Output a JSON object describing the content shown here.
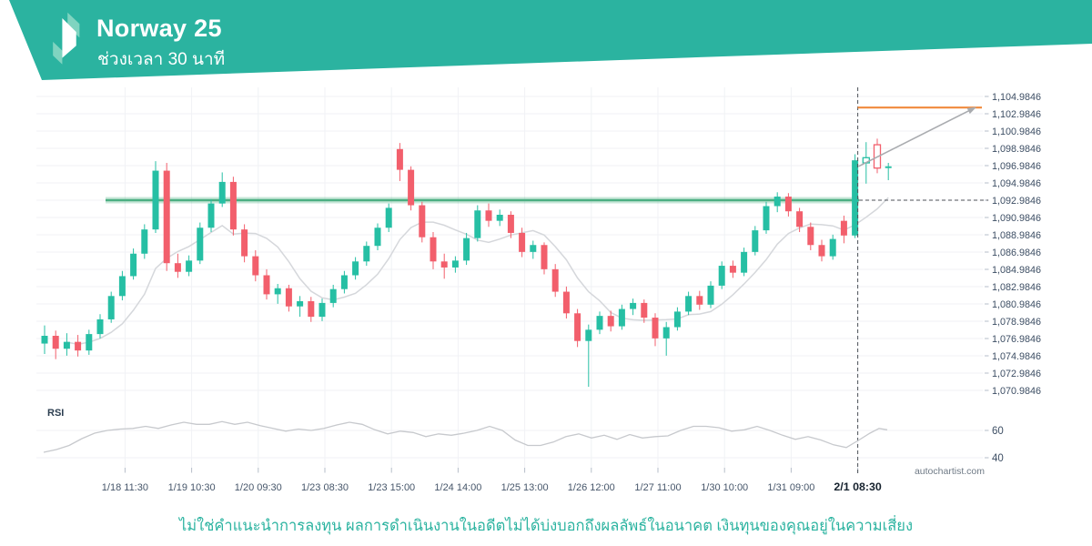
{
  "header": {
    "title": "Norway 25",
    "subtitle": "ช่วงเวลา 30 นาที"
  },
  "rsi_pane_label": "RSI",
  "watermark": "autochartist.com",
  "disclaimer": "ไม่ใช่คำแนะนำการลงทุน ผลการดำเนินงานในอดีตไม่ได้บ่งบอกถึงผลลัพธ์ในอนาคต เงินทุนของคุณอยู่ในความเสี่ยง",
  "colors": {
    "banner": "#2bb3a0",
    "banner_light": "#7fd4c0",
    "bull": "#26bfa4",
    "bear": "#f25f6c",
    "support": "#4caf82",
    "support_glow": "rgba(76,175,130,0.30)",
    "forecast": "#f18a3c",
    "trend": "#a9abaf",
    "ma": "#d3d5d9",
    "rsi_line": "#c7c9cd",
    "grid": "#f0f2f5",
    "tick": "#b6bec9",
    "dashed": "#4c5157",
    "axis_text": "#3d4e64",
    "x_text": "#46566a",
    "x_text_bold": "#16222e"
  },
  "chart_data": {
    "type": "candlestick",
    "symbol": "Norway 25",
    "timeframe_minutes": 30,
    "y_axis": {
      "labels": [
        "1,104.9846",
        "1,102.9846",
        "1,100.9846",
        "1,098.9846",
        "1,096.9846",
        "1,094.9846",
        "1,092.9846",
        "1,090.9846",
        "1,088.9846",
        "1,086.9846",
        "1,084.9846",
        "1,082.9846",
        "1,080.9846",
        "1,078.9846",
        "1,076.9846",
        "1,074.9846",
        "1,072.9846",
        "1,070.9846"
      ],
      "top_value": 1104.9846,
      "step": 2
    },
    "x_axis": {
      "labels": [
        "1/18 11:30",
        "1/19 10:30",
        "1/20 09:30",
        "1/23 08:30",
        "1/23 15:00",
        "1/24 14:00",
        "1/25 13:00",
        "1/26 12:00",
        "1/27 11:00",
        "1/30 10:00",
        "1/31 09:00",
        "2/1 08:30"
      ],
      "bold_index": 11
    },
    "candles": [
      [
        1076.4,
        1078.5,
        1075.2,
        1077.3
      ],
      [
        1077.3,
        1077.9,
        1074.6,
        1075.8
      ],
      [
        1075.8,
        1077.6,
        1075.0,
        1076.6
      ],
      [
        1076.6,
        1077.4,
        1074.9,
        1075.6
      ],
      [
        1075.6,
        1078.0,
        1075.1,
        1077.5
      ],
      [
        1077.5,
        1079.8,
        1077.0,
        1079.2
      ],
      [
        1079.2,
        1082.4,
        1078.8,
        1081.9
      ],
      [
        1081.9,
        1084.8,
        1081.4,
        1084.2
      ],
      [
        1084.2,
        1087.4,
        1083.8,
        1086.8
      ],
      [
        1086.8,
        1090.2,
        1086.2,
        1089.6
      ],
      [
        1089.6,
        1097.5,
        1089.2,
        1096.4
      ],
      [
        1096.4,
        1097.3,
        1084.8,
        1085.7
      ],
      [
        1085.7,
        1086.8,
        1084.0,
        1084.7
      ],
      [
        1084.7,
        1086.6,
        1084.2,
        1086.0
      ],
      [
        1086.0,
        1090.4,
        1085.6,
        1089.8
      ],
      [
        1089.8,
        1093.1,
        1089.3,
        1092.6
      ],
      [
        1092.6,
        1096.2,
        1092.2,
        1095.1
      ],
      [
        1095.1,
        1095.7,
        1088.9,
        1089.6
      ],
      [
        1089.6,
        1090.2,
        1085.8,
        1086.5
      ],
      [
        1086.5,
        1087.2,
        1083.6,
        1084.3
      ],
      [
        1084.3,
        1085.0,
        1081.5,
        1082.1
      ],
      [
        1082.1,
        1083.3,
        1081.0,
        1082.8
      ],
      [
        1082.8,
        1083.2,
        1080.1,
        1080.7
      ],
      [
        1080.7,
        1081.9,
        1079.5,
        1081.3
      ],
      [
        1081.3,
        1081.8,
        1078.9,
        1079.5
      ],
      [
        1079.5,
        1081.6,
        1079.0,
        1081.1
      ],
      [
        1081.1,
        1083.2,
        1080.6,
        1082.7
      ],
      [
        1082.7,
        1084.8,
        1082.2,
        1084.3
      ],
      [
        1084.3,
        1086.4,
        1083.8,
        1085.9
      ],
      [
        1085.9,
        1088.2,
        1085.4,
        1087.7
      ],
      [
        1087.7,
        1090.3,
        1087.2,
        1089.8
      ],
      [
        1089.8,
        1092.6,
        1089.3,
        1092.1
      ],
      [
        1098.9,
        1099.6,
        1095.2,
        1096.5
      ],
      [
        1096.5,
        1096.9,
        1091.8,
        1092.4
      ],
      [
        1092.4,
        1092.8,
        1088.1,
        1088.7
      ],
      [
        1088.7,
        1089.3,
        1085.0,
        1085.9
      ],
      [
        1085.9,
        1086.8,
        1083.9,
        1085.2
      ],
      [
        1085.2,
        1086.5,
        1084.6,
        1086.0
      ],
      [
        1086.0,
        1089.2,
        1085.5,
        1088.6
      ],
      [
        1088.6,
        1092.4,
        1088.2,
        1091.8
      ],
      [
        1091.8,
        1092.6,
        1089.9,
        1090.6
      ],
      [
        1090.6,
        1091.9,
        1090.0,
        1091.3
      ],
      [
        1091.3,
        1091.7,
        1088.6,
        1089.2
      ],
      [
        1089.2,
        1089.8,
        1086.4,
        1087.0
      ],
      [
        1087.0,
        1088.3,
        1086.2,
        1087.8
      ],
      [
        1087.8,
        1088.1,
        1084.4,
        1085.0
      ],
      [
        1085.0,
        1085.6,
        1081.8,
        1082.4
      ],
      [
        1082.4,
        1083.0,
        1079.3,
        1079.9
      ],
      [
        1079.9,
        1080.4,
        1076.0,
        1076.7
      ],
      [
        1076.7,
        1078.6,
        1071.4,
        1078.0
      ],
      [
        1078.0,
        1080.1,
        1077.5,
        1079.6
      ],
      [
        1079.6,
        1080.2,
        1077.8,
        1078.4
      ],
      [
        1078.4,
        1080.9,
        1078.0,
        1080.4
      ],
      [
        1080.4,
        1081.6,
        1079.7,
        1081.1
      ],
      [
        1081.1,
        1081.5,
        1078.8,
        1079.4
      ],
      [
        1079.4,
        1079.9,
        1076.1,
        1077.0
      ],
      [
        1077.0,
        1078.9,
        1075.0,
        1078.3
      ],
      [
        1078.3,
        1080.6,
        1077.9,
        1080.1
      ],
      [
        1080.1,
        1082.4,
        1079.7,
        1081.9
      ],
      [
        1081.9,
        1082.5,
        1080.3,
        1080.9
      ],
      [
        1080.9,
        1083.6,
        1080.5,
        1083.1
      ],
      [
        1083.1,
        1085.9,
        1082.7,
        1085.4
      ],
      [
        1085.4,
        1086.0,
        1084.0,
        1084.6
      ],
      [
        1084.6,
        1087.5,
        1084.2,
        1087.0
      ],
      [
        1087.0,
        1090.0,
        1086.6,
        1089.5
      ],
      [
        1089.5,
        1092.8,
        1089.1,
        1092.3
      ],
      [
        1092.3,
        1093.9,
        1091.6,
        1093.4
      ],
      [
        1093.4,
        1093.8,
        1091.1,
        1091.7
      ],
      [
        1091.7,
        1092.1,
        1089.3,
        1089.9
      ],
      [
        1089.9,
        1090.4,
        1087.2,
        1087.8
      ],
      [
        1087.8,
        1088.4,
        1085.9,
        1086.5
      ],
      [
        1086.5,
        1089.0,
        1086.1,
        1088.5
      ],
      [
        1090.6,
        1091.2,
        1088.0,
        1088.9
      ],
      [
        1088.9,
        1098.3,
        1088.6,
        1097.6
      ],
      [
        1097.3,
        1099.7,
        1094.9,
        1097.9
      ],
      [
        1099.4,
        1100.1,
        1096.1,
        1096.7
      ],
      [
        1096.7,
        1097.3,
        1095.3,
        1096.9
      ]
    ],
    "hollow_candles": [
      74,
      75
    ],
    "support_line": {
      "price": 1092.9846
    },
    "forecast_line": {
      "price": 1103.7
    },
    "trend_arrow": {
      "from_price": 1096.9,
      "to_price": 1103.4
    },
    "event_marker": {
      "x_label": "2/1 08:30",
      "label_index": 11
    },
    "ma_period": 7,
    "rsi": {
      "levels": [
        60,
        40
      ],
      "points": [
        [
          48,
          44
        ],
        [
          62,
          46
        ],
        [
          76,
          49
        ],
        [
          90,
          54
        ],
        [
          104,
          58
        ],
        [
          118,
          60
        ],
        [
          132,
          61
        ],
        [
          146,
          61.5
        ],
        [
          160,
          63
        ],
        [
          174,
          61.5
        ],
        [
          188,
          64
        ],
        [
          202,
          66
        ],
        [
          216,
          64.5
        ],
        [
          230,
          64.5
        ],
        [
          244,
          66.5
        ],
        [
          258,
          64.5
        ],
        [
          272,
          66
        ],
        [
          286,
          63.5
        ],
        [
          300,
          61.5
        ],
        [
          314,
          59.5
        ],
        [
          328,
          61
        ],
        [
          342,
          60
        ],
        [
          356,
          61.5
        ],
        [
          370,
          64
        ],
        [
          384,
          66
        ],
        [
          398,
          64.5
        ],
        [
          412,
          60.5
        ],
        [
          426,
          57.5
        ],
        [
          440,
          59.5
        ],
        [
          454,
          58.5
        ],
        [
          468,
          55.5
        ],
        [
          482,
          57.5
        ],
        [
          496,
          56.5
        ],
        [
          510,
          58
        ],
        [
          524,
          60
        ],
        [
          538,
          63
        ],
        [
          552,
          60
        ],
        [
          566,
          53
        ],
        [
          580,
          49
        ],
        [
          594,
          49
        ],
        [
          608,
          51.5
        ],
        [
          622,
          55.5
        ],
        [
          636,
          57.5
        ],
        [
          650,
          54.5
        ],
        [
          664,
          56.5
        ],
        [
          678,
          53.5
        ],
        [
          692,
          57
        ],
        [
          706,
          54.5
        ],
        [
          720,
          55.5
        ],
        [
          734,
          56
        ],
        [
          748,
          60
        ],
        [
          762,
          63
        ],
        [
          776,
          63
        ],
        [
          790,
          62
        ],
        [
          804,
          59.5
        ],
        [
          818,
          60.5
        ],
        [
          832,
          63
        ],
        [
          846,
          60
        ],
        [
          860,
          56.5
        ],
        [
          874,
          53.5
        ],
        [
          888,
          55.5
        ],
        [
          902,
          53
        ],
        [
          916,
          49.5
        ],
        [
          930,
          47.5
        ],
        [
          944,
          53
        ],
        [
          956,
          58
        ],
        [
          966,
          61.5
        ],
        [
          975,
          60.5
        ]
      ]
    }
  }
}
